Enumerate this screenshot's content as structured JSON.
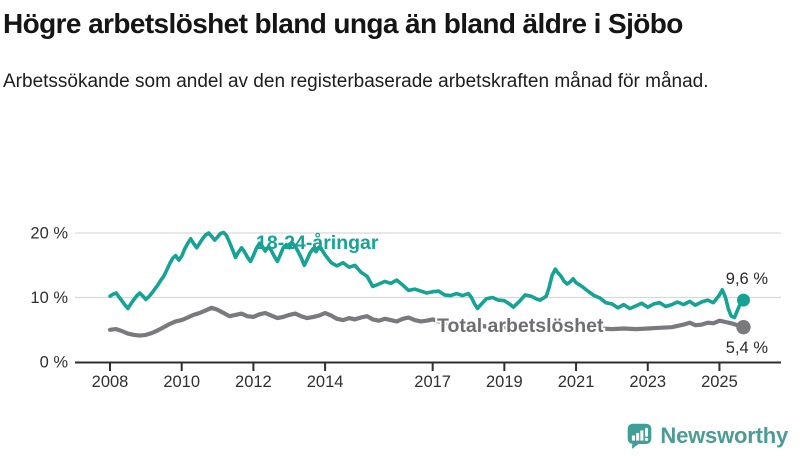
{
  "header": {
    "title": "Högre arbetslöshet bland unga än bland äldre i Sjöbo",
    "subtitle": "Arbetssökande som andel av den registerbaserade arbetskraften månad för månad."
  },
  "footer": {
    "brand": "Newsworthy"
  },
  "colors": {
    "accent_teal": "#16a294",
    "line_gray": "#7a7a7e",
    "label_gray": "#6e6e72",
    "axis": "#2e2e2e",
    "grid": "#d9d9d9",
    "tick_text": "#303030",
    "value_text": "#2b2b2b",
    "brand": "#4c9b96"
  },
  "chart_data": {
    "type": "line",
    "title": "Högre arbetslöshet bland unga än bland äldre i Sjöbo",
    "subtitle": "Arbetssökande som andel av den registerbaserade arbetskraften månad för månad.",
    "xlabel": "",
    "ylabel": "",
    "x_unit": "year (decimal ≈ monthly)",
    "y_unit": "percent of registered labour force",
    "xlim": [
      2007.0,
      2026.9
    ],
    "ylim": [
      0,
      21
    ],
    "grid": "horizontal",
    "legend_position": "inline-labels",
    "y_ticks": [
      {
        "value": 0,
        "label": "0 %"
      },
      {
        "value": 10,
        "label": "10 %"
      },
      {
        "value": 20,
        "label": "20 %"
      }
    ],
    "x_ticks": [
      {
        "value": 2008,
        "label": "2008"
      },
      {
        "value": 2010,
        "label": "2010"
      },
      {
        "value": 2012,
        "label": "2012"
      },
      {
        "value": 2014,
        "label": "2014"
      },
      {
        "value": 2017,
        "label": "2017"
      },
      {
        "value": 2019,
        "label": "2019"
      },
      {
        "value": 2021,
        "label": "2021"
      },
      {
        "value": 2023,
        "label": "2023"
      },
      {
        "value": 2025,
        "label": "2025"
      }
    ],
    "series": [
      {
        "name": "18-24-åringar",
        "color": "#16a294",
        "end_label": "9,6 %",
        "last_value": 9.6,
        "points": [
          [
            2008.0,
            10.2
          ],
          [
            2008.08,
            10.5
          ],
          [
            2008.17,
            10.7
          ],
          [
            2008.25,
            10.1
          ],
          [
            2008.33,
            9.5
          ],
          [
            2008.42,
            8.8
          ],
          [
            2008.5,
            8.3
          ],
          [
            2008.58,
            9.0
          ],
          [
            2008.67,
            9.7
          ],
          [
            2008.75,
            10.3
          ],
          [
            2008.83,
            10.7
          ],
          [
            2008.92,
            10.2
          ],
          [
            2009.0,
            9.7
          ],
          [
            2009.08,
            10.1
          ],
          [
            2009.17,
            10.7
          ],
          [
            2009.25,
            11.3
          ],
          [
            2009.33,
            11.9
          ],
          [
            2009.42,
            12.7
          ],
          [
            2009.5,
            13.3
          ],
          [
            2009.58,
            14.2
          ],
          [
            2009.67,
            15.3
          ],
          [
            2009.75,
            16.1
          ],
          [
            2009.83,
            16.5
          ],
          [
            2009.92,
            15.8
          ],
          [
            2010.0,
            16.4
          ],
          [
            2010.08,
            17.5
          ],
          [
            2010.17,
            18.4
          ],
          [
            2010.25,
            19.1
          ],
          [
            2010.33,
            18.4
          ],
          [
            2010.42,
            17.7
          ],
          [
            2010.5,
            18.4
          ],
          [
            2010.58,
            19.1
          ],
          [
            2010.67,
            19.7
          ],
          [
            2010.75,
            20.0
          ],
          [
            2010.83,
            19.5
          ],
          [
            2010.92,
            18.9
          ],
          [
            2011.0,
            19.4
          ],
          [
            2011.08,
            19.9
          ],
          [
            2011.17,
            20.1
          ],
          [
            2011.25,
            19.6
          ],
          [
            2011.33,
            18.6
          ],
          [
            2011.42,
            17.4
          ],
          [
            2011.5,
            16.2
          ],
          [
            2011.58,
            17.0
          ],
          [
            2011.67,
            17.7
          ],
          [
            2011.75,
            17.1
          ],
          [
            2011.83,
            16.3
          ],
          [
            2011.92,
            15.6
          ],
          [
            2012.0,
            16.5
          ],
          [
            2012.08,
            17.6
          ],
          [
            2012.17,
            18.4
          ],
          [
            2012.25,
            17.9
          ],
          [
            2012.33,
            17.2
          ],
          [
            2012.42,
            17.9
          ],
          [
            2012.5,
            17.3
          ],
          [
            2012.58,
            16.4
          ],
          [
            2012.67,
            15.6
          ],
          [
            2012.75,
            16.6
          ],
          [
            2012.83,
            17.7
          ],
          [
            2012.92,
            18.2
          ],
          [
            2013.0,
            17.7
          ],
          [
            2013.08,
            18.5
          ],
          [
            2013.17,
            17.9
          ],
          [
            2013.25,
            17.1
          ],
          [
            2013.33,
            16.2
          ],
          [
            2013.42,
            15.0
          ],
          [
            2013.5,
            15.9
          ],
          [
            2013.58,
            16.9
          ],
          [
            2013.67,
            17.6
          ],
          [
            2013.75,
            17.1
          ],
          [
            2013.83,
            17.8
          ],
          [
            2013.92,
            17.3
          ],
          [
            2014.0,
            16.6
          ],
          [
            2014.17,
            15.4
          ],
          [
            2014.33,
            14.9
          ],
          [
            2014.5,
            15.4
          ],
          [
            2014.67,
            14.7
          ],
          [
            2014.83,
            15.0
          ],
          [
            2015.0,
            13.9
          ],
          [
            2015.17,
            13.3
          ],
          [
            2015.33,
            11.7
          ],
          [
            2015.5,
            12.1
          ],
          [
            2015.67,
            12.5
          ],
          [
            2015.83,
            12.2
          ],
          [
            2016.0,
            12.7
          ],
          [
            2016.17,
            11.9
          ],
          [
            2016.33,
            11.1
          ],
          [
            2016.5,
            11.3
          ],
          [
            2016.67,
            11.0
          ],
          [
            2016.83,
            10.7
          ],
          [
            2017.0,
            10.9
          ],
          [
            2017.17,
            11.0
          ],
          [
            2017.33,
            10.4
          ],
          [
            2017.5,
            10.3
          ],
          [
            2017.67,
            10.6
          ],
          [
            2017.83,
            10.3
          ],
          [
            2018.0,
            10.6
          ],
          [
            2018.08,
            10.0
          ],
          [
            2018.17,
            9.0
          ],
          [
            2018.25,
            8.3
          ],
          [
            2018.33,
            8.8
          ],
          [
            2018.5,
            9.8
          ],
          [
            2018.67,
            10.0
          ],
          [
            2018.83,
            9.6
          ],
          [
            2019.0,
            9.5
          ],
          [
            2019.17,
            8.9
          ],
          [
            2019.25,
            8.5
          ],
          [
            2019.42,
            9.4
          ],
          [
            2019.58,
            10.4
          ],
          [
            2019.75,
            10.2
          ],
          [
            2019.92,
            9.7
          ],
          [
            2020.0,
            9.6
          ],
          [
            2020.17,
            10.2
          ],
          [
            2020.25,
            11.6
          ],
          [
            2020.33,
            13.4
          ],
          [
            2020.42,
            14.4
          ],
          [
            2020.5,
            13.8
          ],
          [
            2020.58,
            13.3
          ],
          [
            2020.67,
            12.5
          ],
          [
            2020.75,
            12.1
          ],
          [
            2020.83,
            12.4
          ],
          [
            2020.92,
            12.9
          ],
          [
            2021.0,
            12.3
          ],
          [
            2021.17,
            11.7
          ],
          [
            2021.33,
            11.0
          ],
          [
            2021.5,
            10.3
          ],
          [
            2021.67,
            9.9
          ],
          [
            2021.83,
            9.2
          ],
          [
            2022.0,
            9.0
          ],
          [
            2022.17,
            8.4
          ],
          [
            2022.33,
            8.9
          ],
          [
            2022.5,
            8.3
          ],
          [
            2022.67,
            8.7
          ],
          [
            2022.83,
            9.1
          ],
          [
            2023.0,
            8.5
          ],
          [
            2023.17,
            9.0
          ],
          [
            2023.33,
            9.2
          ],
          [
            2023.5,
            8.6
          ],
          [
            2023.67,
            8.9
          ],
          [
            2023.83,
            9.3
          ],
          [
            2024.0,
            8.9
          ],
          [
            2024.17,
            9.4
          ],
          [
            2024.33,
            8.8
          ],
          [
            2024.5,
            9.3
          ],
          [
            2024.67,
            9.6
          ],
          [
            2024.83,
            9.2
          ],
          [
            2025.0,
            10.4
          ],
          [
            2025.08,
            11.2
          ],
          [
            2025.17,
            10.0
          ],
          [
            2025.25,
            8.2
          ],
          [
            2025.33,
            7.1
          ],
          [
            2025.42,
            6.9
          ],
          [
            2025.5,
            8.0
          ],
          [
            2025.58,
            9.0
          ],
          [
            2025.67,
            9.6
          ]
        ]
      },
      {
        "name": "Total arbetslöshet",
        "color": "#7a7a7e",
        "end_label": "5,4 %",
        "last_value": 5.4,
        "points": [
          [
            2008.0,
            5.0
          ],
          [
            2008.17,
            5.1
          ],
          [
            2008.33,
            4.8
          ],
          [
            2008.5,
            4.4
          ],
          [
            2008.67,
            4.2
          ],
          [
            2008.83,
            4.1
          ],
          [
            2009.0,
            4.2
          ],
          [
            2009.17,
            4.5
          ],
          [
            2009.33,
            4.9
          ],
          [
            2009.5,
            5.4
          ],
          [
            2009.67,
            5.9
          ],
          [
            2009.83,
            6.3
          ],
          [
            2010.0,
            6.5
          ],
          [
            2010.17,
            6.9
          ],
          [
            2010.33,
            7.3
          ],
          [
            2010.5,
            7.6
          ],
          [
            2010.67,
            8.0
          ],
          [
            2010.83,
            8.4
          ],
          [
            2011.0,
            8.1
          ],
          [
            2011.17,
            7.6
          ],
          [
            2011.33,
            7.1
          ],
          [
            2011.5,
            7.3
          ],
          [
            2011.67,
            7.5
          ],
          [
            2011.83,
            7.1
          ],
          [
            2012.0,
            7.0
          ],
          [
            2012.17,
            7.4
          ],
          [
            2012.33,
            7.6
          ],
          [
            2012.5,
            7.2
          ],
          [
            2012.67,
            6.8
          ],
          [
            2012.83,
            7.0
          ],
          [
            2013.0,
            7.3
          ],
          [
            2013.17,
            7.5
          ],
          [
            2013.33,
            7.1
          ],
          [
            2013.5,
            6.8
          ],
          [
            2013.67,
            7.0
          ],
          [
            2013.83,
            7.2
          ],
          [
            2014.0,
            7.6
          ],
          [
            2014.17,
            7.2
          ],
          [
            2014.33,
            6.7
          ],
          [
            2014.5,
            6.5
          ],
          [
            2014.67,
            6.8
          ],
          [
            2014.83,
            6.6
          ],
          [
            2015.0,
            6.9
          ],
          [
            2015.17,
            7.1
          ],
          [
            2015.33,
            6.6
          ],
          [
            2015.5,
            6.4
          ],
          [
            2015.67,
            6.7
          ],
          [
            2015.83,
            6.5
          ],
          [
            2016.0,
            6.3
          ],
          [
            2016.17,
            6.7
          ],
          [
            2016.33,
            6.9
          ],
          [
            2016.5,
            6.5
          ],
          [
            2016.67,
            6.3
          ],
          [
            2016.83,
            6.4
          ],
          [
            2017.0,
            6.6
          ],
          [
            2017.17,
            6.3
          ],
          [
            2017.33,
            6.0
          ],
          [
            2017.5,
            6.2
          ],
          [
            2017.67,
            6.0
          ],
          [
            2017.83,
            5.9
          ],
          [
            2018.0,
            6.1
          ],
          [
            2018.17,
            5.9
          ],
          [
            2018.33,
            5.6
          ],
          [
            2018.5,
            5.5
          ],
          [
            2018.67,
            5.7
          ],
          [
            2018.83,
            5.6
          ],
          [
            2019.0,
            5.4
          ],
          [
            2019.33,
            5.2
          ],
          [
            2019.67,
            5.3
          ],
          [
            2020.0,
            5.3
          ],
          [
            2020.33,
            5.8
          ],
          [
            2020.5,
            6.0
          ],
          [
            2020.67,
            5.8
          ],
          [
            2020.83,
            5.6
          ],
          [
            2021.0,
            5.5
          ],
          [
            2021.33,
            5.3
          ],
          [
            2021.67,
            5.2
          ],
          [
            2022.0,
            5.1
          ],
          [
            2022.33,
            5.2
          ],
          [
            2022.67,
            5.1
          ],
          [
            2023.0,
            5.2
          ],
          [
            2023.33,
            5.3
          ],
          [
            2023.67,
            5.4
          ],
          [
            2024.0,
            5.8
          ],
          [
            2024.17,
            6.1
          ],
          [
            2024.33,
            5.7
          ],
          [
            2024.5,
            5.8
          ],
          [
            2024.67,
            6.1
          ],
          [
            2024.83,
            6.0
          ],
          [
            2025.0,
            6.4
          ],
          [
            2025.17,
            6.2
          ],
          [
            2025.33,
            6.0
          ],
          [
            2025.5,
            5.7
          ],
          [
            2025.67,
            5.4
          ]
        ]
      }
    ]
  }
}
